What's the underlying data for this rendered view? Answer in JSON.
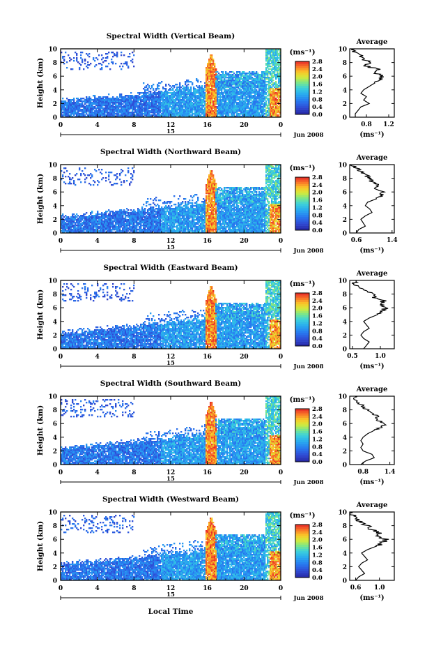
{
  "figure": {
    "date_label": "Jun 2008",
    "day_label": "15",
    "xaxis_label": "Local Time",
    "ylabel": "Height (km)",
    "colorbar_unit": "(ms⁻¹)",
    "avg_title": "Average",
    "avg_xlabel": "(ms⁻¹)"
  },
  "chart_data": [
    {
      "type": "heatmap",
      "title": "Spectral Width (Vertical Beam)",
      "xlabel": "Local Time",
      "ylabel": "Height (km)",
      "xlim": [
        0,
        24
      ],
      "xticks": [
        "0",
        "4",
        "8",
        "12",
        "16",
        "20",
        "0"
      ],
      "ylim": [
        0,
        10
      ],
      "yticks": [
        "0",
        "2",
        "4",
        "6",
        "8",
        "10"
      ],
      "colorbar": {
        "unit": "(ms⁻¹)",
        "range": [
          0,
          2.8
        ],
        "ticks": [
          "0.0",
          "0.4",
          "0.8",
          "1.2",
          "1.6",
          "2.0",
          "2.4",
          "2.8"
        ]
      },
      "average_profile": {
        "title": "Average",
        "xlabel": "(ms⁻¹)",
        "xlim": [
          0.5,
          1.3
        ],
        "xticks": [
          "0.8",
          "1.2"
        ],
        "height": [
          0,
          0.5,
          1,
          1.5,
          2,
          2.5,
          3,
          3.5,
          4,
          4.5,
          5,
          5.5,
          6,
          6.5,
          7,
          7.5,
          8,
          8.5,
          9,
          9.5,
          10
        ],
        "value": [
          0.6,
          0.6,
          0.65,
          0.7,
          0.85,
          0.75,
          0.8,
          0.7,
          0.75,
          0.85,
          0.95,
          1.05,
          1.1,
          0.95,
          1.0,
          0.8,
          0.85,
          0.75,
          0.7,
          0.6,
          0.55
        ]
      }
    },
    {
      "type": "heatmap",
      "title": "Spectral Width (Northward Beam)",
      "xlabel": "Local Time",
      "ylabel": "Height (km)",
      "xlim": [
        0,
        24
      ],
      "xticks": [
        "0",
        "4",
        "8",
        "12",
        "16",
        "20",
        "0"
      ],
      "ylim": [
        0,
        10
      ],
      "yticks": [
        "0",
        "2",
        "4",
        "6",
        "8",
        "10"
      ],
      "colorbar": {
        "unit": "(ms⁻¹)",
        "range": [
          0,
          2.8
        ],
        "ticks": [
          "0.0",
          "0.4",
          "0.8",
          "1.2",
          "1.6",
          "2.0",
          "2.4",
          "2.8"
        ]
      },
      "average_profile": {
        "title": "Average",
        "xlabel": "(ms⁻¹)",
        "xlim": [
          0.45,
          1.45
        ],
        "xticks": [
          "0.6",
          "1.4"
        ],
        "height": [
          0,
          0.5,
          1,
          1.5,
          2,
          2.5,
          3,
          3.5,
          4,
          4.5,
          5,
          5.5,
          6,
          6.5,
          7,
          7.5,
          8,
          8.5,
          9,
          9.5,
          10
        ],
        "value": [
          0.6,
          0.65,
          0.8,
          0.75,
          0.7,
          0.8,
          0.95,
          0.9,
          0.8,
          0.85,
          1.05,
          1.15,
          1.2,
          1.0,
          1.1,
          0.95,
          0.9,
          0.8,
          0.7,
          0.6,
          0.5
        ]
      }
    },
    {
      "type": "heatmap",
      "title": "Spectral Width (Eastward Beam)",
      "xlabel": "Local Time",
      "ylabel": "Height (km)",
      "xlim": [
        0,
        24
      ],
      "xticks": [
        "0",
        "4",
        "8",
        "12",
        "16",
        "20",
        "0"
      ],
      "ylim": [
        0,
        10
      ],
      "yticks": [
        "0",
        "2",
        "4",
        "6",
        "8",
        "10"
      ],
      "colorbar": {
        "unit": "(ms⁻¹)",
        "range": [
          0,
          2.8
        ],
        "ticks": [
          "0.0",
          "0.4",
          "0.8",
          "1.2",
          "1.6",
          "2.0",
          "2.4",
          "2.8"
        ]
      },
      "average_profile": {
        "title": "Average",
        "xlabel": "(ms⁻¹)",
        "xlim": [
          0.45,
          1.25
        ],
        "xticks": [
          "0.5",
          "1.0"
        ],
        "height": [
          0,
          0.5,
          1,
          1.5,
          2,
          2.5,
          3,
          3.5,
          4,
          4.5,
          5,
          5.5,
          6,
          6.5,
          7,
          7.5,
          8,
          8.5,
          9,
          9.5,
          10
        ],
        "value": [
          0.7,
          0.75,
          0.8,
          0.7,
          0.65,
          0.7,
          0.8,
          0.75,
          0.7,
          0.8,
          0.95,
          1.05,
          1.1,
          1.0,
          1.05,
          0.9,
          0.85,
          0.7,
          0.6,
          0.55,
          0.5
        ]
      }
    },
    {
      "type": "heatmap",
      "title": "Spectral Width (Southward Beam)",
      "xlabel": "Local Time",
      "ylabel": "Height (km)",
      "xlim": [
        0,
        24
      ],
      "xticks": [
        "0",
        "4",
        "8",
        "12",
        "16",
        "20",
        "0"
      ],
      "ylim": [
        0,
        10
      ],
      "yticks": [
        "0",
        "2",
        "4",
        "6",
        "8",
        "10"
      ],
      "colorbar": {
        "unit": "(ms⁻¹)",
        "range": [
          0,
          2.8
        ],
        "ticks": [
          "0.0",
          "0.4",
          "0.8",
          "1.2",
          "1.6",
          "2.0",
          "2.4",
          "2.8"
        ]
      },
      "average_profile": {
        "title": "Average",
        "xlabel": "(ms⁻¹)",
        "xlim": [
          0.5,
          1.5
        ],
        "xticks": [
          "0.8",
          "1.4"
        ],
        "height": [
          0,
          0.5,
          1,
          1.5,
          2,
          2.5,
          3,
          3.5,
          4,
          4.5,
          5,
          5.5,
          6,
          6.5,
          7,
          7.5,
          8,
          8.5,
          9,
          9.5,
          10
        ],
        "value": [
          0.75,
          0.85,
          1.05,
          1.0,
          0.8,
          0.75,
          0.8,
          0.75,
          0.8,
          0.9,
          1.05,
          1.2,
          1.3,
          1.1,
          1.15,
          1.0,
          0.9,
          0.8,
          0.7,
          0.65,
          0.6
        ]
      }
    },
    {
      "type": "heatmap",
      "title": "Spectral Width (Westward Beam)",
      "xlabel": "Local Time",
      "ylabel": "Height (km)",
      "xlim": [
        0,
        24
      ],
      "xticks": [
        "0",
        "4",
        "8",
        "12",
        "16",
        "20",
        "0"
      ],
      "ylim": [
        0,
        10
      ],
      "yticks": [
        "0",
        "2",
        "4",
        "6",
        "8",
        "10"
      ],
      "colorbar": {
        "unit": "(ms⁻¹)",
        "range": [
          0,
          2.8
        ],
        "ticks": [
          "0.0",
          "0.4",
          "0.8",
          "1.2",
          "1.6",
          "2.0",
          "2.4",
          "2.8"
        ]
      },
      "average_profile": {
        "title": "Average",
        "xlabel": "(ms⁻¹)",
        "xlim": [
          0.5,
          1.25
        ],
        "xticks": [
          "0.6",
          "1.0"
        ],
        "height": [
          0,
          0.5,
          1,
          1.5,
          2,
          2.5,
          3,
          3.5,
          4,
          4.5,
          5,
          5.5,
          6,
          6.5,
          7,
          7.5,
          8,
          8.5,
          9,
          9.5,
          10
        ],
        "value": [
          0.6,
          0.65,
          0.75,
          0.7,
          0.65,
          0.7,
          0.8,
          0.75,
          0.7,
          0.8,
          0.95,
          1.05,
          1.1,
          0.95,
          1.0,
          0.85,
          0.8,
          0.7,
          0.6,
          0.55,
          0.5
        ]
      }
    }
  ]
}
